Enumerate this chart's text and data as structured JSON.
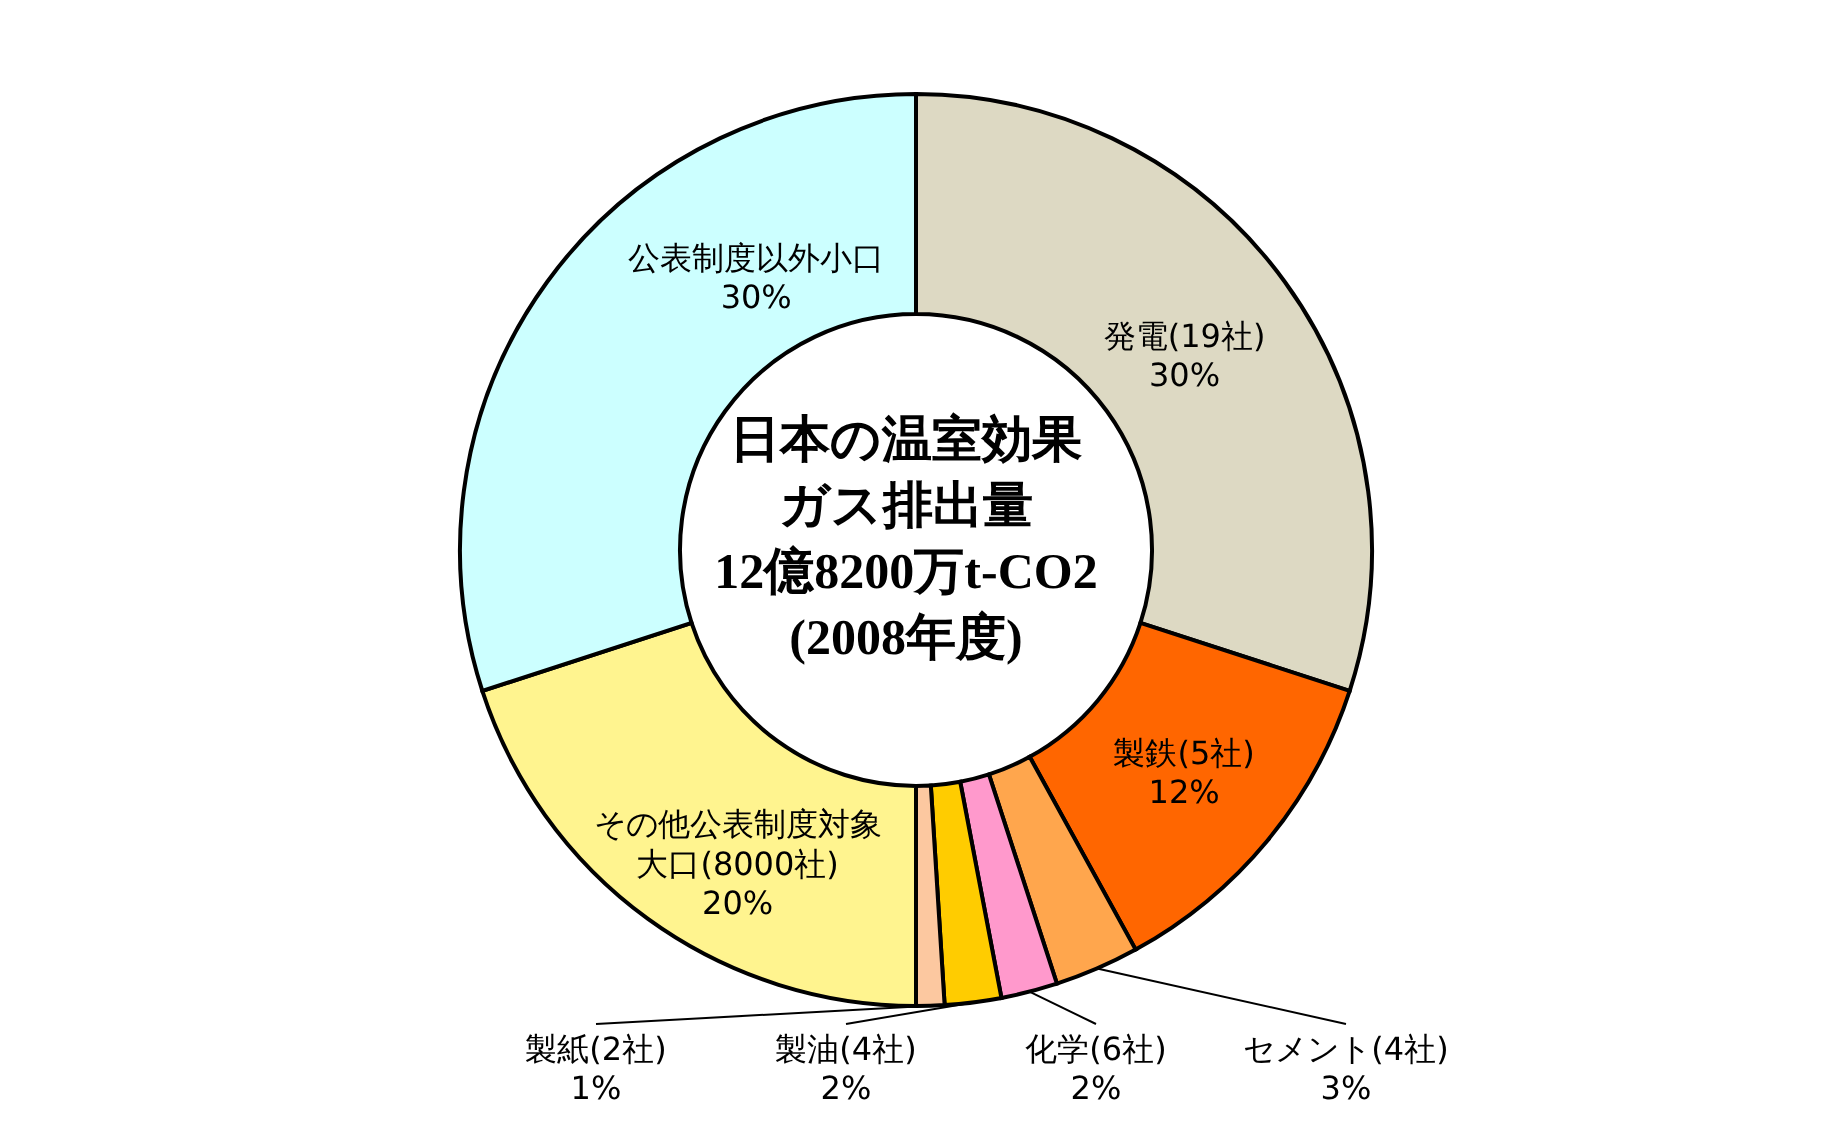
{
  "chart_data": {
    "type": "donut",
    "title": "日本の温室効果ガス排出量",
    "subtitle": "12億8200万t-CO2(2008年度)",
    "categories": [
      "発電(19社)",
      "製鉄(5社)",
      "セメント(4社)",
      "化学(6社)",
      "製油(4社)",
      "製紙(2社)",
      "その他公表制度対象大口(8000社)",
      "公表制度以外小口"
    ],
    "values": [
      30,
      12,
      3,
      2,
      2,
      1,
      20,
      30
    ],
    "colors": [
      "#ddd9c3",
      "#ff6600",
      "#ffa64d",
      "#ff99cc",
      "#ffcc00",
      "#fcc8a0",
      "#fff48f",
      "#ccffff"
    ],
    "value_labels": [
      "30%",
      "12%",
      "3%",
      "2%",
      "2%",
      "1%",
      "20%",
      "30%"
    ]
  }
}
